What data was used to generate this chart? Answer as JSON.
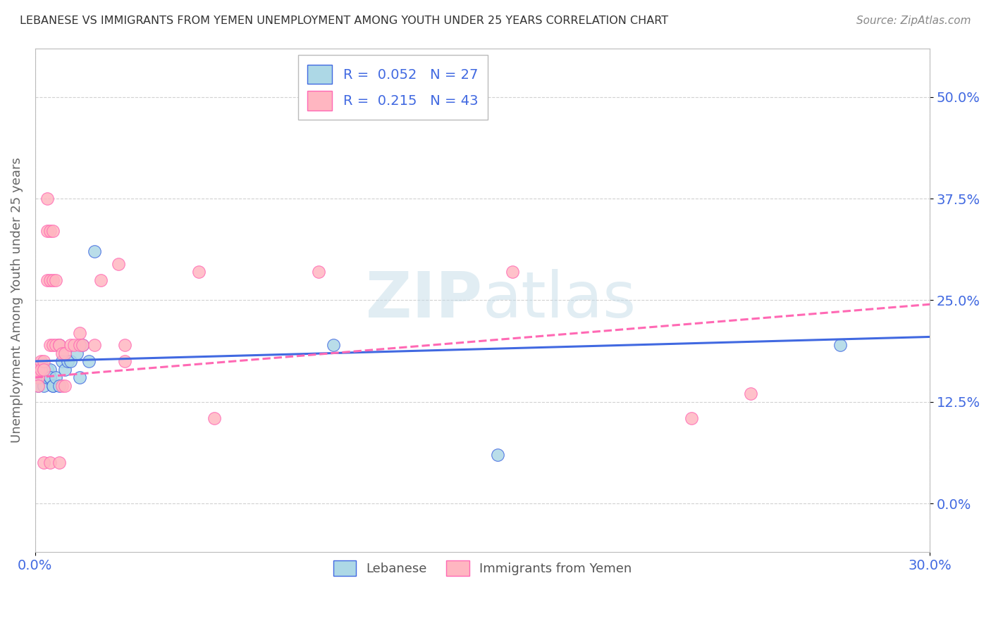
{
  "title": "LEBANESE VS IMMIGRANTS FROM YEMEN UNEMPLOYMENT AMONG YOUTH UNDER 25 YEARS CORRELATION CHART",
  "source": "Source: ZipAtlas.com",
  "ylabel": "Unemployment Among Youth under 25 years",
  "xlim": [
    0.0,
    0.3
  ],
  "ylim": [
    -0.06,
    0.56
  ],
  "ytick_vals": [
    0.0,
    0.125,
    0.25,
    0.375,
    0.5
  ],
  "ytick_labels": [
    "0.0%",
    "12.5%",
    "25.0%",
    "37.5%",
    "50.0%"
  ],
  "xtick_vals": [
    0.0,
    0.3
  ],
  "xtick_labels": [
    "0.0%",
    "30.0%"
  ],
  "legend_r1": "R =  0.052",
  "legend_n1": "N = 27",
  "legend_r2": "R =  0.215",
  "legend_n2": "N = 43",
  "leb_color": "#ADD8E6",
  "yem_color": "#FFB6C1",
  "leb_edge": "#4169E1",
  "yem_edge": "#FF69B4",
  "leb_line": "#4169E1",
  "yem_line": "#FF69B4",
  "bg_color": "#ffffff",
  "grid_color": "#cccccc",
  "title_color": "#333333",
  "source_color": "#888888",
  "tick_color": "#4169E1",
  "ylabel_color": "#666666",
  "lebanese_x": [
    0.001,
    0.002,
    0.002,
    0.003,
    0.003,
    0.004,
    0.004,
    0.005,
    0.005,
    0.005,
    0.006,
    0.006,
    0.007,
    0.008,
    0.008,
    0.009,
    0.01,
    0.011,
    0.012,
    0.014,
    0.015,
    0.016,
    0.018,
    0.02,
    0.1,
    0.155,
    0.27
  ],
  "lebanese_y": [
    0.145,
    0.155,
    0.165,
    0.155,
    0.145,
    0.155,
    0.165,
    0.155,
    0.165,
    0.155,
    0.145,
    0.145,
    0.155,
    0.145,
    0.195,
    0.175,
    0.165,
    0.175,
    0.175,
    0.185,
    0.155,
    0.195,
    0.175,
    0.31,
    0.195,
    0.06,
    0.195
  ],
  "yemen_x": [
    0.001,
    0.001,
    0.001,
    0.002,
    0.002,
    0.003,
    0.003,
    0.003,
    0.004,
    0.004,
    0.004,
    0.005,
    0.005,
    0.005,
    0.005,
    0.006,
    0.006,
    0.006,
    0.007,
    0.007,
    0.008,
    0.008,
    0.008,
    0.009,
    0.009,
    0.01,
    0.01,
    0.012,
    0.013,
    0.015,
    0.015,
    0.016,
    0.02,
    0.022,
    0.028,
    0.03,
    0.03,
    0.055,
    0.06,
    0.095,
    0.16,
    0.22,
    0.24
  ],
  "yemen_y": [
    0.165,
    0.155,
    0.145,
    0.175,
    0.165,
    0.175,
    0.165,
    0.05,
    0.375,
    0.335,
    0.275,
    0.335,
    0.275,
    0.195,
    0.05,
    0.335,
    0.275,
    0.195,
    0.275,
    0.195,
    0.195,
    0.195,
    0.05,
    0.185,
    0.145,
    0.185,
    0.145,
    0.195,
    0.195,
    0.21,
    0.195,
    0.195,
    0.195,
    0.275,
    0.295,
    0.195,
    0.175,
    0.285,
    0.105,
    0.285,
    0.285,
    0.105,
    0.135
  ]
}
